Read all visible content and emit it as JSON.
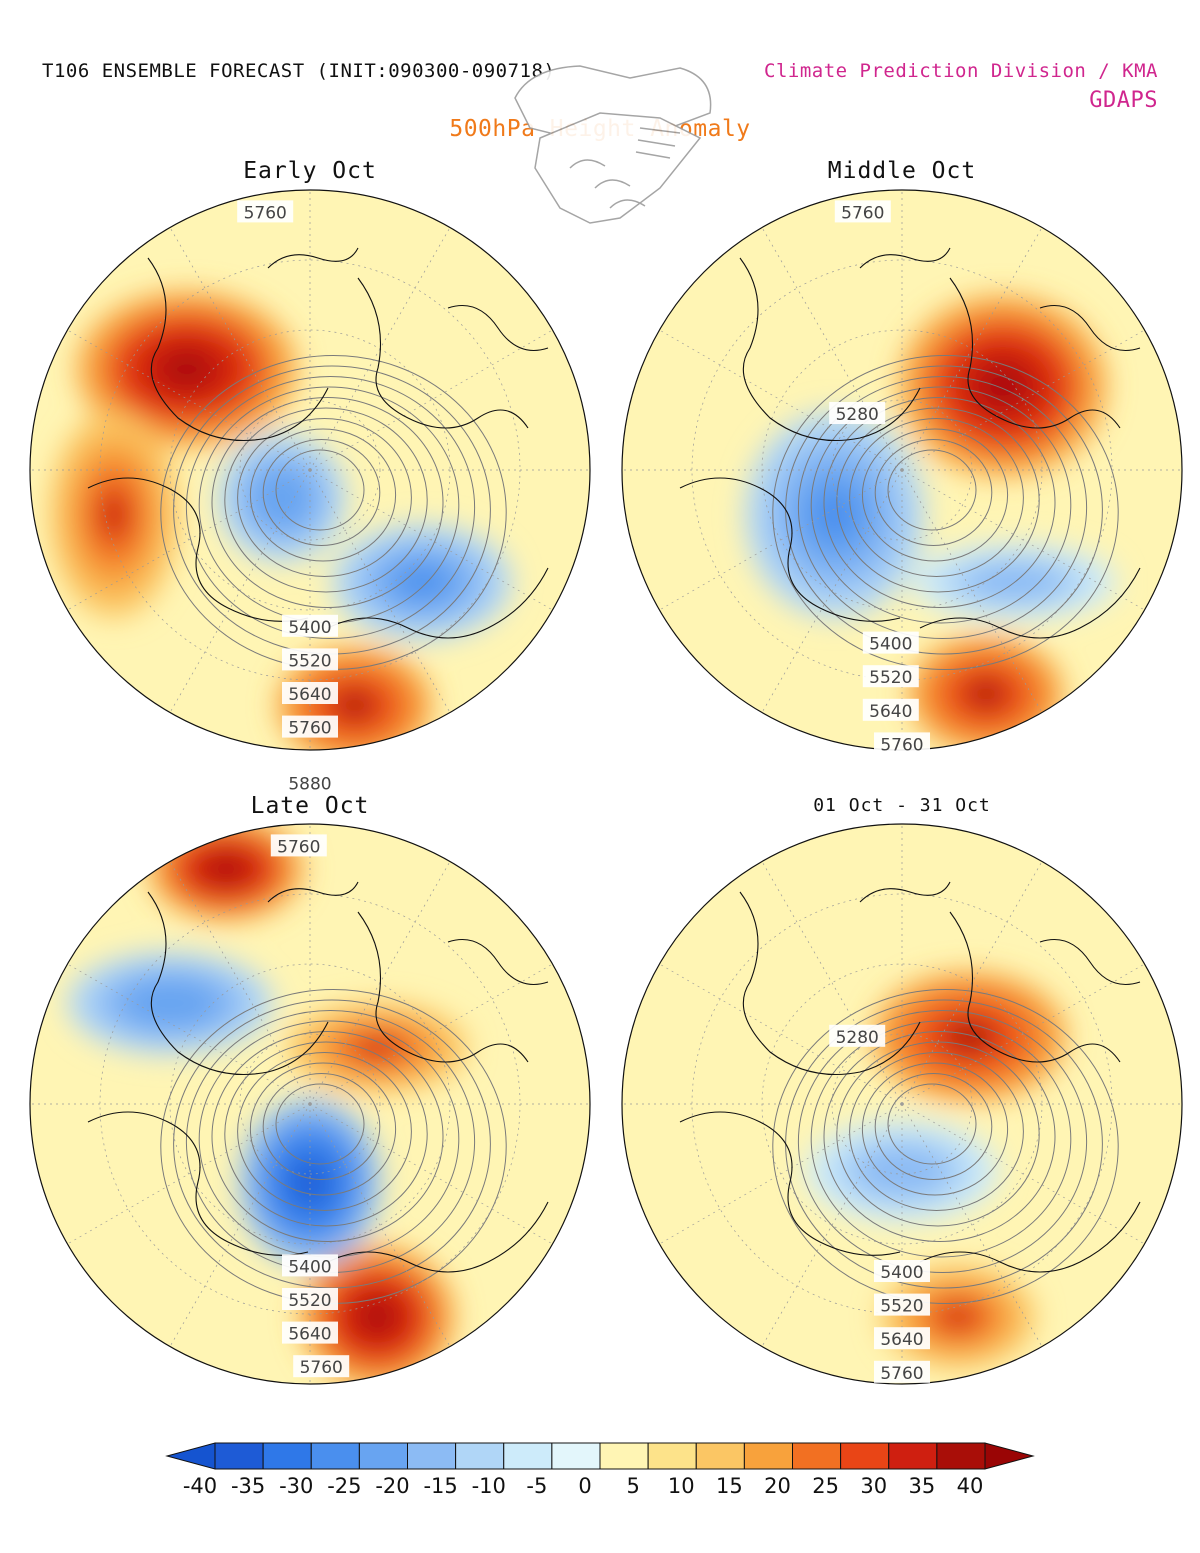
{
  "header": {
    "left_title": "T106 ENSEMBLE FORECAST (INIT:090300-090718)",
    "right_title": "Climate Prediction Division / KMA",
    "right_subtitle": "GDAPS",
    "subtitle": "500hPa Height Anomaly"
  },
  "panels": [
    {
      "title": "Early Oct",
      "contour_labels": [
        "5760",
        "5400",
        "5520",
        "5640",
        "5760",
        "5880"
      ],
      "anomalies": [
        {
          "sign": "positive",
          "strength": 40,
          "region": "north-atlantic"
        },
        {
          "sign": "positive",
          "strength": 30,
          "region": "western-europe"
        },
        {
          "sign": "positive",
          "strength": 35,
          "region": "north-pacific"
        },
        {
          "sign": "negative",
          "strength": -30,
          "region": "siberia"
        },
        {
          "sign": "negative",
          "strength": -25,
          "region": "arctic"
        }
      ]
    },
    {
      "title": "Middle Oct",
      "contour_labels": [
        "5760",
        "5280",
        "5400",
        "5520",
        "5640",
        "5760"
      ],
      "anomalies": [
        {
          "sign": "positive",
          "strength": 40,
          "region": "canada"
        },
        {
          "sign": "positive",
          "strength": 35,
          "region": "north-pacific"
        },
        {
          "sign": "negative",
          "strength": -30,
          "region": "arctic-eurasia"
        },
        {
          "sign": "negative",
          "strength": -20,
          "region": "east-asia"
        }
      ]
    },
    {
      "title": "Late Oct",
      "contour_labels": [
        "5760",
        "5400",
        "5520",
        "5640",
        "5760"
      ],
      "anomalies": [
        {
          "sign": "positive",
          "strength": 40,
          "region": "greenland"
        },
        {
          "sign": "positive",
          "strength": 40,
          "region": "north-pacific"
        },
        {
          "sign": "positive",
          "strength": 30,
          "region": "eurasia"
        },
        {
          "sign": "negative",
          "strength": -40,
          "region": "arctic"
        },
        {
          "sign": "negative",
          "strength": -25,
          "region": "europe"
        }
      ]
    },
    {
      "title": "01 Oct - 31 Oct",
      "contour_labels": [
        "5280",
        "5400",
        "5520",
        "5640",
        "5760"
      ],
      "anomalies": [
        {
          "sign": "positive",
          "strength": 35,
          "region": "canada"
        },
        {
          "sign": "positive",
          "strength": 30,
          "region": "north-pacific"
        },
        {
          "sign": "negative",
          "strength": -20,
          "region": "arctic"
        }
      ]
    }
  ],
  "colorbar": {
    "ticks": [
      "-40",
      "-35",
      "-30",
      "-25",
      "-20",
      "-15",
      "-10",
      "-5",
      "0",
      "5",
      "10",
      "15",
      "20",
      "25",
      "30",
      "35",
      "40"
    ],
    "colors": [
      "#1e5bd6",
      "#2f78e8",
      "#4a8fee",
      "#68a4f1",
      "#8cbbf4",
      "#b0d6f7",
      "#cdebfa",
      "#e3f6fb",
      "#fff5b4",
      "#fde38a",
      "#fbc664",
      "#f8a23c",
      "#f27022",
      "#e94516",
      "#cf1f10",
      "#a90e08"
    ],
    "under_color": "#1554d0",
    "over_color": "#9a0505"
  },
  "colors": {
    "title": "#111111",
    "kma": "#d0268e",
    "subtitle": "#f07a1a",
    "background_fill": "#fff5b4"
  }
}
